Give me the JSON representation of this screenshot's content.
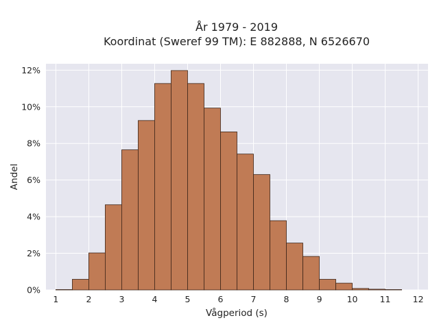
{
  "chart_data": {
    "type": "bar",
    "title_lines": [
      "År 1979 - 2019",
      "Koordinat (Sweref 99 TM): E 882888, N 6526670"
    ],
    "xlabel": "Vågperiod (s)",
    "ylabel": "Andel",
    "bin_width": 0.5,
    "bins": [
      {
        "x_start": 1.0,
        "value": 0.0002
      },
      {
        "x_start": 1.5,
        "value": 0.0058
      },
      {
        "x_start": 2.0,
        "value": 0.0202
      },
      {
        "x_start": 2.5,
        "value": 0.0465
      },
      {
        "x_start": 3.0,
        "value": 0.0765
      },
      {
        "x_start": 3.5,
        "value": 0.0925
      },
      {
        "x_start": 4.0,
        "value": 0.1127
      },
      {
        "x_start": 4.5,
        "value": 0.1198
      },
      {
        "x_start": 5.0,
        "value": 0.1127
      },
      {
        "x_start": 5.5,
        "value": 0.0993
      },
      {
        "x_start": 6.0,
        "value": 0.0863
      },
      {
        "x_start": 6.5,
        "value": 0.0742
      },
      {
        "x_start": 7.0,
        "value": 0.063
      },
      {
        "x_start": 7.5,
        "value": 0.0378
      },
      {
        "x_start": 8.0,
        "value": 0.0256
      },
      {
        "x_start": 8.5,
        "value": 0.0183
      },
      {
        "x_start": 9.0,
        "value": 0.0058
      },
      {
        "x_start": 9.5,
        "value": 0.0037
      },
      {
        "x_start": 10.0,
        "value": 0.0008
      },
      {
        "x_start": 10.5,
        "value": 0.0004
      },
      {
        "x_start": 11.0,
        "value": 0.0002
      }
    ],
    "x_ticks": [
      1,
      2,
      3,
      4,
      5,
      6,
      7,
      8,
      9,
      10,
      11,
      12
    ],
    "x_tick_labels": [
      "1",
      "2",
      "3",
      "4",
      "5",
      "6",
      "7",
      "8",
      "9",
      "10",
      "11",
      "12"
    ],
    "y_ticks": [
      0,
      0.02,
      0.04,
      0.06,
      0.08,
      0.1,
      0.12
    ],
    "y_tick_labels": [
      "0%",
      "2%",
      "4%",
      "6%",
      "8%",
      "10%",
      "12%"
    ],
    "xlim": [
      0.7,
      12.3
    ],
    "ylim": [
      0,
      0.1235
    ],
    "grid": true,
    "colors": {
      "bar_fill": "#c07b55",
      "bar_edge": "#3b2418",
      "plot_bg": "#e6e6ef",
      "grid": "#ffffff"
    }
  }
}
